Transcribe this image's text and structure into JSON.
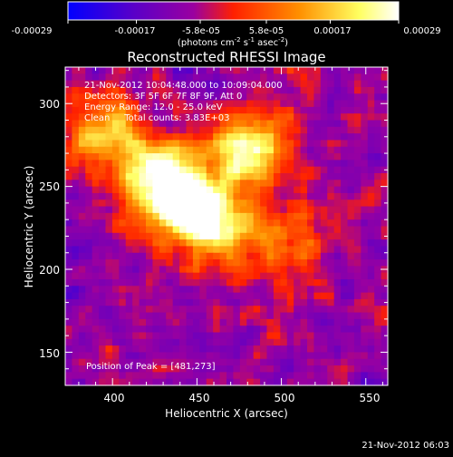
{
  "colorbar": {
    "tick_labels": [
      "-0.00029",
      "-0.00017",
      "-5.8e-05",
      "5.8e-05",
      "0.00017",
      "0.00029"
    ],
    "unit_label": "(photons cm",
    "unit_sup1": "-2",
    "unit_mid": " s",
    "unit_sup2": "-1",
    "unit_mid2": " asec",
    "unit_sup3": "-2",
    "unit_end": ")",
    "colormap_stops": [
      "#0000ff",
      "#5a00c8",
      "#9a00a0",
      "#ff2000",
      "#ff9000",
      "#ffff60",
      "#ffffff"
    ]
  },
  "plot": {
    "title": "Reconstructed RHESSI Image",
    "xlabel": "Heliocentric X (arcsec)",
    "ylabel": "Heliocentric Y (arcsec)",
    "info_lines": [
      "21-Nov-2012 10:04:48.000 to 10:09:04.000",
      "Detectors: 3F 5F 6F 7F 8F 9F, Att 0",
      "Energy Range: 12.0 - 25.0 keV",
      "Clean     Total counts: 3.83E+03"
    ],
    "peak_label": "Position of Peak = [481,273]",
    "footer_timestamp": "21-Nov-2012 06:03"
  },
  "chart_data": {
    "type": "heatmap",
    "title": "Reconstructed RHESSI Image",
    "xlabel": "Heliocentric X (arcsec)",
    "ylabel": "Heliocentric Y (arcsec)",
    "xlim": [
      372,
      563
    ],
    "ylim": [
      130,
      322
    ],
    "x_ticks": [
      400,
      450,
      500,
      550
    ],
    "y_ticks": [
      150,
      200,
      250,
      300
    ],
    "color_range": [
      -0.00029,
      0.00029
    ],
    "peak_position": [
      481,
      273
    ],
    "bright_sources": [
      {
        "x": 425,
        "y": 255,
        "relative_intensity": 0.95
      },
      {
        "x": 445,
        "y": 240,
        "relative_intensity": 0.9
      },
      {
        "x": 481,
        "y": 273,
        "relative_intensity": 1.0
      },
      {
        "x": 465,
        "y": 225,
        "relative_intensity": 0.7
      },
      {
        "x": 395,
        "y": 285,
        "relative_intensity": 0.65
      },
      {
        "x": 505,
        "y": 215,
        "relative_intensity": 0.4
      }
    ]
  }
}
